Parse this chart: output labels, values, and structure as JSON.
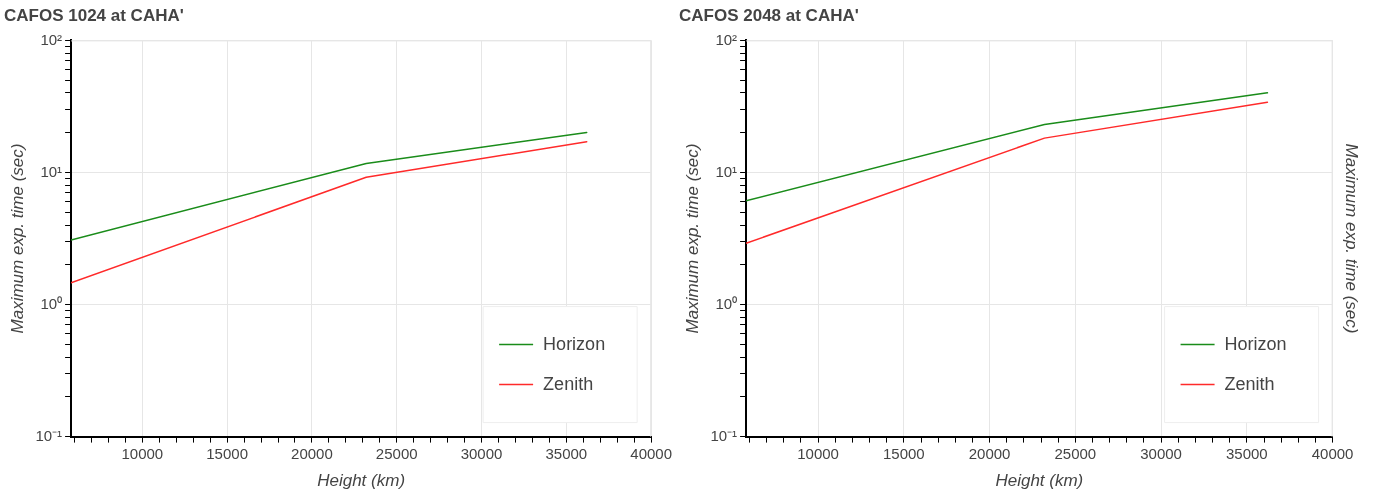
{
  "chart_data": [
    {
      "type": "line",
      "title": "CAFOS 1024 at CAHA'",
      "xlabel": "Height (km)",
      "ylabel": "Maximum exp. time (sec)",
      "x": [
        5800,
        23200,
        36200
      ],
      "series": [
        {
          "name": "Horizon",
          "color": "#1a8c1a",
          "values": [
            3.08,
            11.7,
            20.1
          ]
        },
        {
          "name": "Zenith",
          "color": "#ff2a2a",
          "values": [
            1.46,
            9.2,
            17.1
          ]
        }
      ],
      "xlim": [
        5800,
        40000
      ],
      "xticks": [
        {
          "value": 6000,
          "label": null
        },
        {
          "value": 7000,
          "label": null
        },
        {
          "value": 8000,
          "label": null
        },
        {
          "value": 9000,
          "label": null
        },
        10000,
        {
          "value": 11000,
          "label": null
        },
        {
          "value": 12000,
          "label": null
        },
        {
          "value": 13000,
          "label": null
        },
        {
          "value": 14000,
          "label": null
        },
        15000,
        {
          "value": 16000,
          "label": null
        },
        {
          "value": 17000,
          "label": null
        },
        {
          "value": 18000,
          "label": null
        },
        {
          "value": 19000,
          "label": null
        },
        20000,
        {
          "value": 21000,
          "label": null
        },
        {
          "value": 22000,
          "label": null
        },
        {
          "value": 23000,
          "label": null
        },
        {
          "value": 24000,
          "label": null
        },
        25000,
        {
          "value": 26000,
          "label": null
        },
        {
          "value": 27000,
          "label": null
        },
        {
          "value": 28000,
          "label": null
        },
        {
          "value": 29000,
          "label": null
        },
        30000,
        {
          "value": 31000,
          "label": null
        },
        {
          "value": 32000,
          "label": null
        },
        {
          "value": 33000,
          "label": null
        },
        {
          "value": 34000,
          "label": null
        },
        35000,
        {
          "value": 36000,
          "label": null
        },
        {
          "value": 37000,
          "label": null
        },
        {
          "value": 38000,
          "label": null
        },
        {
          "value": 39000,
          "label": null
        },
        40000
      ],
      "ylim": [
        0.1,
        100
      ],
      "yticks": [
        {
          "value": 0.1,
          "label": "10⁻¹"
        },
        {
          "value": 0.2,
          "label": null
        },
        {
          "value": 0.3,
          "label": null
        },
        {
          "value": 0.4,
          "label": null
        },
        {
          "value": 0.5,
          "label": null
        },
        {
          "value": 0.6,
          "label": null
        },
        {
          "value": 0.7,
          "label": null
        },
        {
          "value": 0.8,
          "label": null
        },
        {
          "value": 0.9,
          "label": null
        },
        {
          "value": 1,
          "label": "10⁰"
        },
        {
          "value": 2,
          "label": null
        },
        {
          "value": 3,
          "label": null
        },
        {
          "value": 4,
          "label": null
        },
        {
          "value": 5,
          "label": null
        },
        {
          "value": 6,
          "label": null
        },
        {
          "value": 7,
          "label": null
        },
        {
          "value": 8,
          "label": null
        },
        {
          "value": 9,
          "label": null
        },
        {
          "value": 10,
          "label": "10¹"
        },
        {
          "value": 20,
          "label": null
        },
        {
          "value": 30,
          "label": null
        },
        {
          "value": 40,
          "label": null
        },
        {
          "value": 50,
          "label": null
        },
        {
          "value": 60,
          "label": null
        },
        {
          "value": 70,
          "label": null
        },
        {
          "value": 80,
          "label": null
        },
        {
          "value": 90,
          "label": null
        },
        {
          "value": 100,
          "label": "10²"
        }
      ],
      "log": "y",
      "grid": true,
      "legend": "bottom right",
      "marker": "none",
      "line_style": "solid"
    },
    {
      "type": "line",
      "title": "CAFOS 2048 at CAHA'",
      "xlabel": "Height (km)",
      "ylabel": "Maximum exp. time (sec)",
      "y2label": "Maximum exp. time (sec)",
      "x": [
        5800,
        23200,
        36200
      ],
      "series": [
        {
          "name": "Horizon",
          "color": "#1a8c1a",
          "values": [
            6.1,
            23.1,
            40.1
          ]
        },
        {
          "name": "Zenith",
          "color": "#ff2a2a",
          "values": [
            2.91,
            18.2,
            34.0
          ]
        }
      ],
      "xlim": [
        5800,
        40000
      ],
      "xticks": [
        {
          "value": 6000,
          "label": null
        },
        {
          "value": 7000,
          "label": null
        },
        {
          "value": 8000,
          "label": null
        },
        {
          "value": 9000,
          "label": null
        },
        10000,
        {
          "value": 11000,
          "label": null
        },
        {
          "value": 12000,
          "label": null
        },
        {
          "value": 13000,
          "label": null
        },
        {
          "value": 14000,
          "label": null
        },
        15000,
        {
          "value": 16000,
          "label": null
        },
        {
          "value": 17000,
          "label": null
        },
        {
          "value": 18000,
          "label": null
        },
        {
          "value": 19000,
          "label": null
        },
        20000,
        {
          "value": 21000,
          "label": null
        },
        {
          "value": 22000,
          "label": null
        },
        {
          "value": 23000,
          "label": null
        },
        {
          "value": 24000,
          "label": null
        },
        25000,
        {
          "value": 26000,
          "label": null
        },
        {
          "value": 27000,
          "label": null
        },
        {
          "value": 28000,
          "label": null
        },
        {
          "value": 29000,
          "label": null
        },
        30000,
        {
          "value": 31000,
          "label": null
        },
        {
          "value": 32000,
          "label": null
        },
        {
          "value": 33000,
          "label": null
        },
        {
          "value": 34000,
          "label": null
        },
        35000,
        {
          "value": 36000,
          "label": null
        },
        {
          "value": 37000,
          "label": null
        },
        {
          "value": 38000,
          "label": null
        },
        {
          "value": 39000,
          "label": null
        },
        40000
      ],
      "ylim": [
        0.1,
        100
      ],
      "yticks": [
        {
          "value": 0.1,
          "label": "10⁻¹"
        },
        {
          "value": 0.2,
          "label": null
        },
        {
          "value": 0.3,
          "label": null
        },
        {
          "value": 0.4,
          "label": null
        },
        {
          "value": 0.5,
          "label": null
        },
        {
          "value": 0.6,
          "label": null
        },
        {
          "value": 0.7,
          "label": null
        },
        {
          "value": 0.8,
          "label": null
        },
        {
          "value": 0.9,
          "label": null
        },
        {
          "value": 1,
          "label": "10⁰"
        },
        {
          "value": 2,
          "label": null
        },
        {
          "value": 3,
          "label": null
        },
        {
          "value": 4,
          "label": null
        },
        {
          "value": 5,
          "label": null
        },
        {
          "value": 6,
          "label": null
        },
        {
          "value": 7,
          "label": null
        },
        {
          "value": 8,
          "label": null
        },
        {
          "value": 9,
          "label": null
        },
        {
          "value": 10,
          "label": "10¹"
        },
        {
          "value": 20,
          "label": null
        },
        {
          "value": 30,
          "label": null
        },
        {
          "value": 40,
          "label": null
        },
        {
          "value": 50,
          "label": null
        },
        {
          "value": 60,
          "label": null
        },
        {
          "value": 70,
          "label": null
        },
        {
          "value": 80,
          "label": null
        },
        {
          "value": 90,
          "label": null
        },
        {
          "value": 100,
          "label": "10²"
        }
      ],
      "log": "y",
      "grid": true,
      "legend": "bottom right",
      "marker": "none",
      "line_style": "solid"
    }
  ]
}
